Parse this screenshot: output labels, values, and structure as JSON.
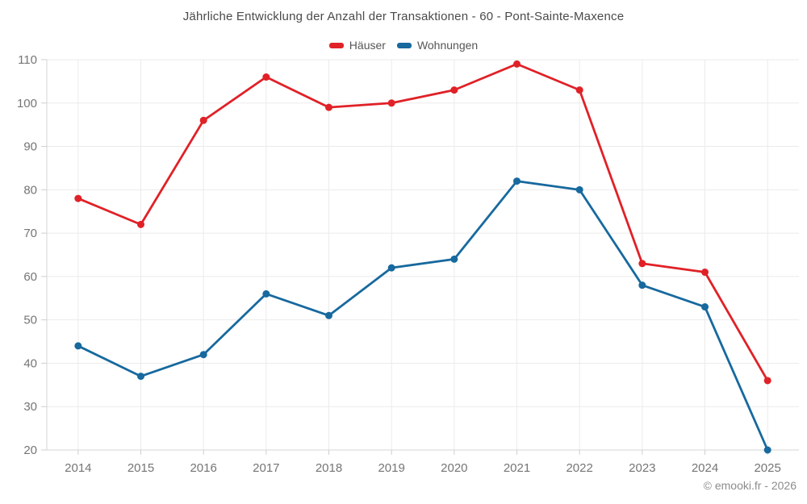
{
  "title": "Jährliche Entwicklung der Anzahl der Transaktionen - 60 - Pont-Sainte-Maxence",
  "copyright": "© emooki.fr - 2026",
  "colors": {
    "hauser_red": "#e02127",
    "wohnungen_blue": "#17699e",
    "grid": "#ebebeb",
    "axis": "#d6d6d6",
    "tick": "#cfcfcf",
    "tick_label": "#757575",
    "title_text": "#4a4a4a",
    "legend_text": "#555555",
    "copyright_text": "#8c8c8c"
  },
  "chart_data": {
    "type": "line",
    "title": "Jährliche Entwicklung der Anzahl der Transaktionen - 60 - Pont-Sainte-Maxence",
    "categories": [
      "2014",
      "2015",
      "2016",
      "2017",
      "2018",
      "2019",
      "2020",
      "2021",
      "2022",
      "2023",
      "2024",
      "2025"
    ],
    "series": [
      {
        "name": "Häuser",
        "color": "#e02127",
        "values": [
          78,
          72,
          96,
          106,
          99,
          100,
          103,
          109,
          103,
          63,
          61,
          36
        ]
      },
      {
        "name": "Wohnungen",
        "color": "#17699e",
        "values": [
          44,
          37,
          42,
          56,
          51,
          62,
          64,
          82,
          80,
          58,
          53,
          20
        ]
      }
    ],
    "xlabel": "",
    "ylabel": "",
    "ylim": [
      20,
      110
    ],
    "ytick_step": 10,
    "yticks": [
      20,
      30,
      40,
      50,
      60,
      70,
      80,
      90,
      100,
      110
    ],
    "grid": true,
    "legend_position": "top",
    "marker": "circle"
  }
}
